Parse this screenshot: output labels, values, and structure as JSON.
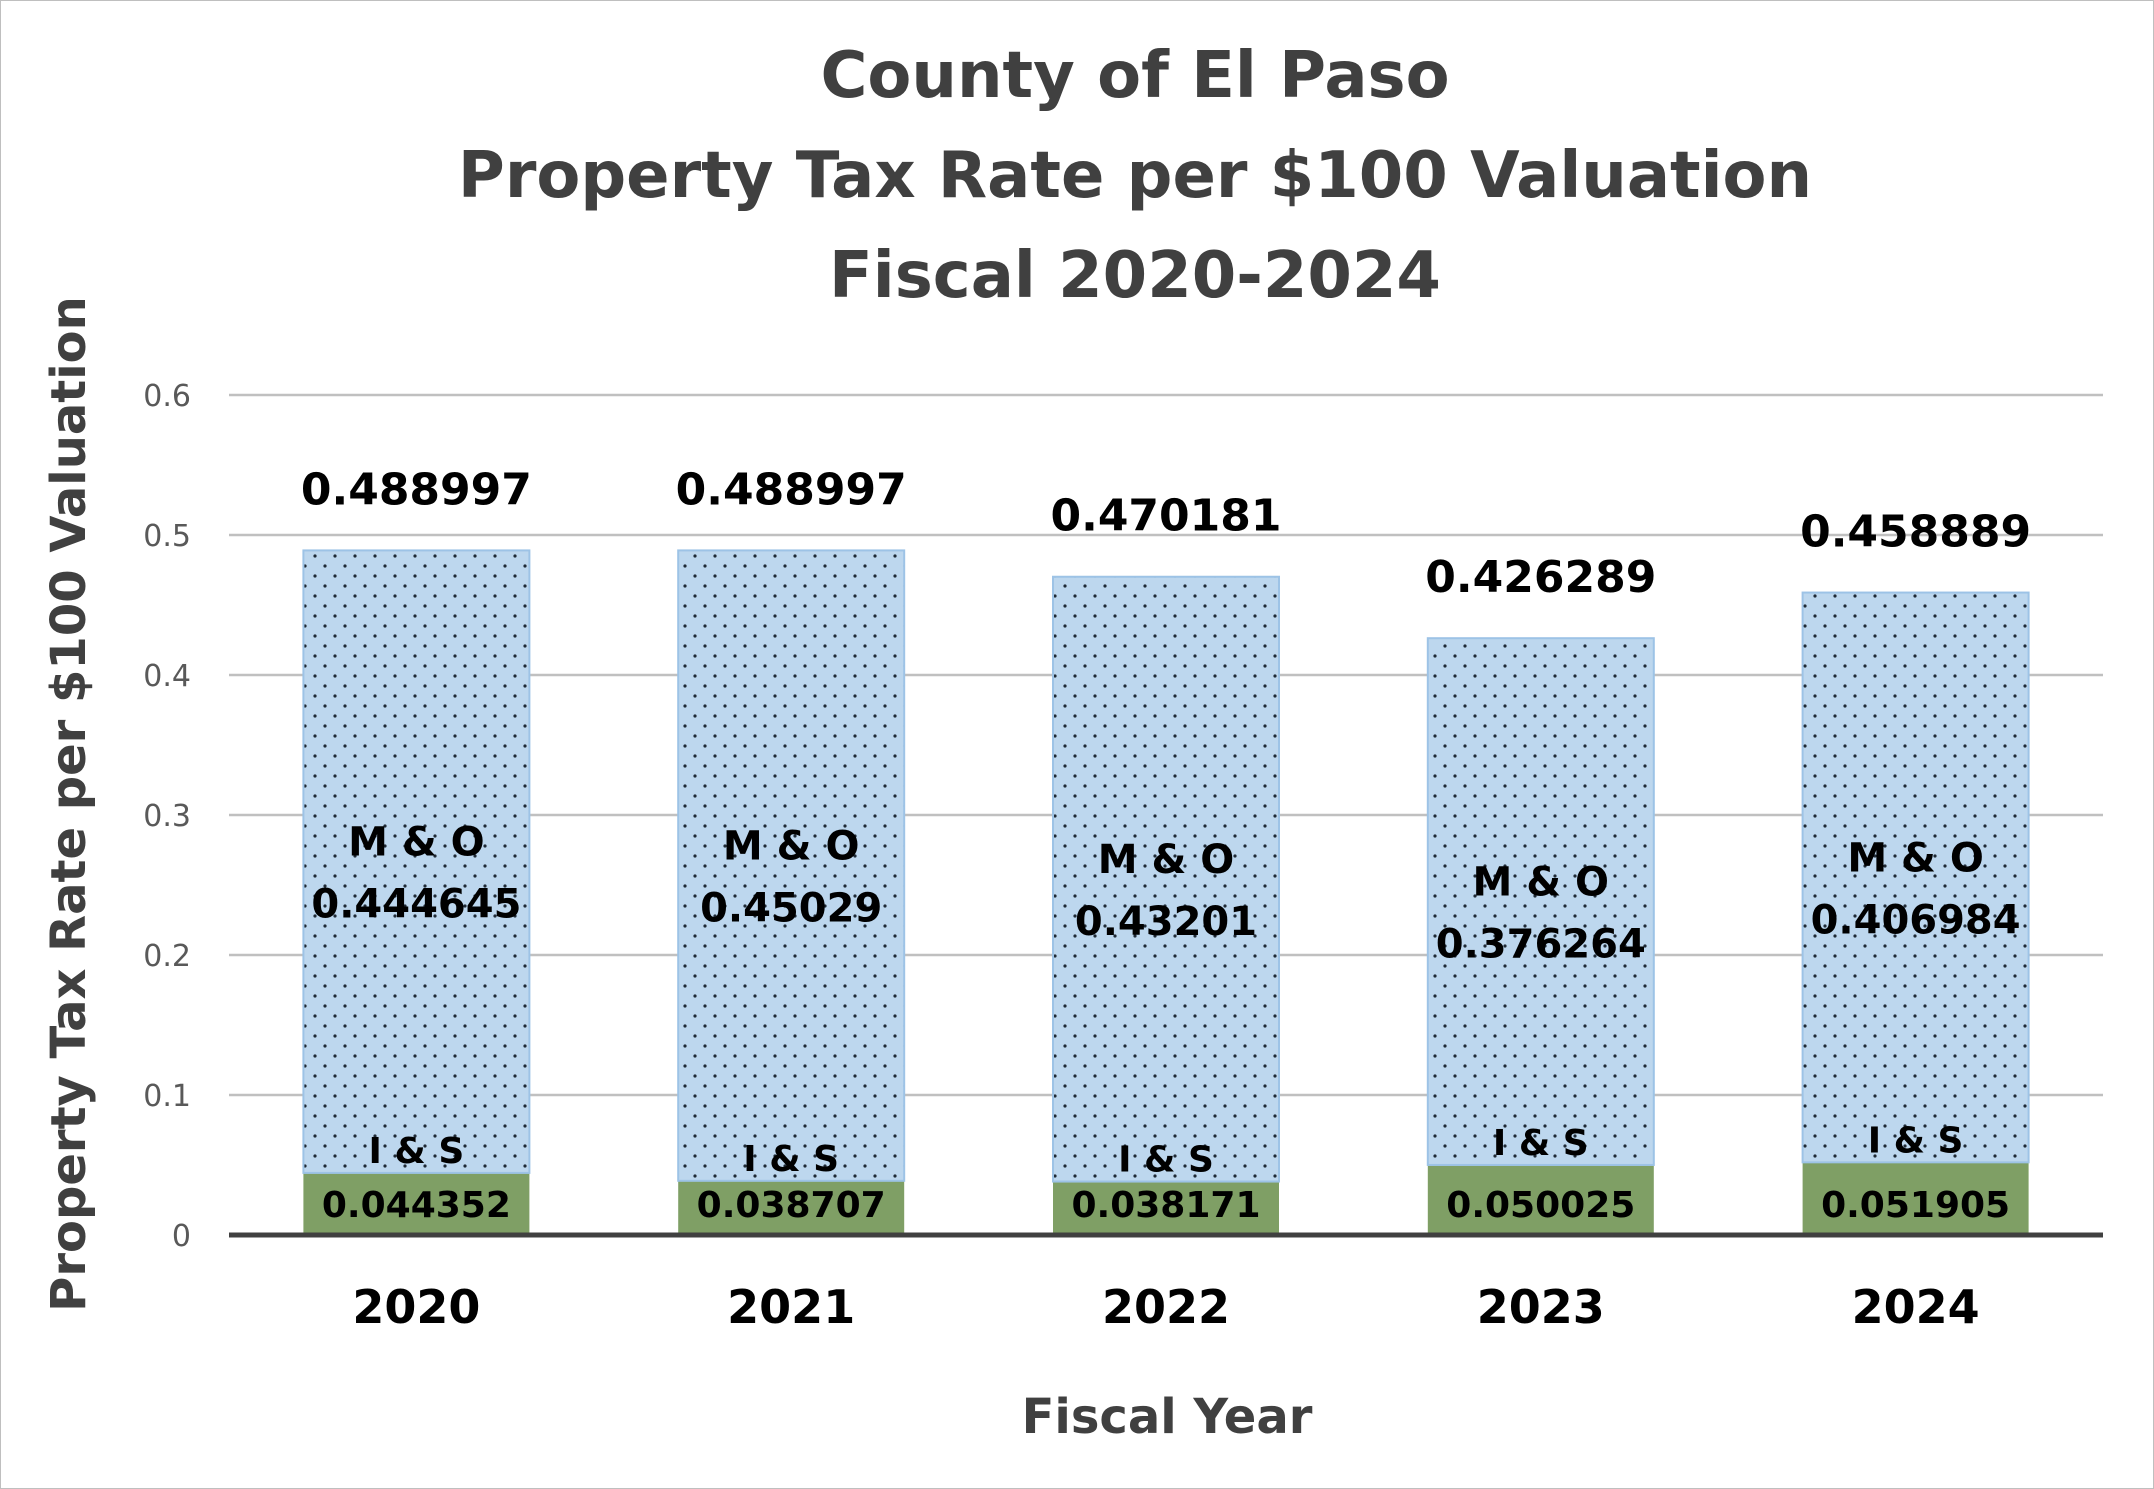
{
  "chart_data": {
    "type": "bar",
    "stacked": true,
    "title": [
      "County of El Paso",
      "Property Tax Rate per $100 Valuation",
      "Fiscal 2020-2024"
    ],
    "xlabel": "Fiscal Year",
    "ylabel": "Property Tax Rate per $100 Valuation",
    "categories": [
      "2020",
      "2021",
      "2022",
      "2023",
      "2024"
    ],
    "ylim": [
      0,
      0.6
    ],
    "yticks": [
      "0",
      "0.1",
      "0.2",
      "0.3",
      "0.4",
      "0.5",
      "0.6"
    ],
    "grid": true,
    "series": [
      {
        "name": "I & S",
        "values": [
          0.044352,
          0.038707,
          0.038171,
          0.050025,
          0.051905
        ],
        "labels": [
          "0.044352",
          "0.038707",
          "0.038171",
          "0.050025",
          "0.051905"
        ],
        "color": "#7f9f65"
      },
      {
        "name": "M & O",
        "values": [
          0.444645,
          0.45029,
          0.43201,
          0.376264,
          0.406984
        ],
        "labels": [
          "0.444645",
          "0.45029",
          "0.43201",
          "0.376264",
          "0.406984"
        ],
        "color": "#bdd7ee",
        "pattern": "dots"
      }
    ],
    "totals": [
      "0.488997",
      "0.488997",
      "0.470181",
      "0.426289",
      "0.458889"
    ]
  }
}
